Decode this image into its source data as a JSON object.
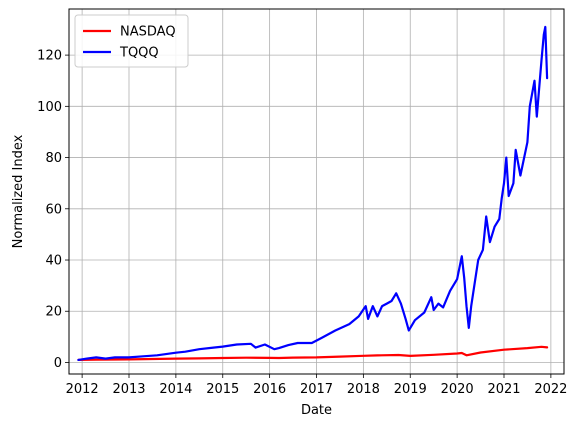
{
  "chart_data": {
    "type": "line",
    "xlabel": "Date",
    "ylabel": "Normalized Index",
    "xlim": [
      2011.72,
      2022.28
    ],
    "ylim": [
      -4.5,
      138
    ],
    "grid": true,
    "legend_position": "top-left",
    "x_ticks": [
      2012,
      2013,
      2014,
      2015,
      2016,
      2017,
      2018,
      2019,
      2020,
      2021,
      2022
    ],
    "x_tick_labels": [
      "2012",
      "2013",
      "2014",
      "2015",
      "2016",
      "2017",
      "2018",
      "2019",
      "2020",
      "2021",
      "2022"
    ],
    "y_ticks": [
      0,
      20,
      40,
      60,
      80,
      100,
      120
    ],
    "y_tick_labels": [
      "0",
      "20",
      "40",
      "60",
      "80",
      "100",
      "120"
    ],
    "series": [
      {
        "name": "NASDAQ",
        "color": "#ff0000",
        "x": [
          2011.92,
          2012.3,
          2012.7,
          2013.0,
          2013.5,
          2014.0,
          2014.5,
          2015.0,
          2015.5,
          2016.0,
          2016.2,
          2016.5,
          2017.0,
          2017.5,
          2018.0,
          2018.3,
          2018.75,
          2019.0,
          2019.5,
          2020.0,
          2020.1,
          2020.2,
          2020.5,
          2021.0,
          2021.5,
          2021.8,
          2021.92
        ],
        "y": [
          1.0,
          1.1,
          1.15,
          1.2,
          1.35,
          1.5,
          1.6,
          1.75,
          1.85,
          1.8,
          1.75,
          1.9,
          2.0,
          2.3,
          2.6,
          2.75,
          2.9,
          2.55,
          3.0,
          3.5,
          3.7,
          2.8,
          3.9,
          5.0,
          5.6,
          6.1,
          5.9
        ]
      },
      {
        "name": "TQQQ",
        "color": "#0000ff",
        "x": [
          2011.92,
          2012.1,
          2012.3,
          2012.5,
          2012.7,
          2013.0,
          2013.3,
          2013.6,
          2014.0,
          2014.2,
          2014.5,
          2014.8,
          2015.0,
          2015.3,
          2015.6,
          2015.7,
          2015.9,
          2016.1,
          2016.2,
          2016.4,
          2016.6,
          2016.9,
          2017.1,
          2017.4,
          2017.7,
          2017.9,
          2018.05,
          2018.1,
          2018.2,
          2018.3,
          2018.4,
          2018.5,
          2018.6,
          2018.7,
          2018.8,
          2018.9,
          2018.97,
          2019.1,
          2019.3,
          2019.45,
          2019.5,
          2019.6,
          2019.7,
          2019.85,
          2020.0,
          2020.1,
          2020.15,
          2020.2,
          2020.25,
          2020.3,
          2020.45,
          2020.55,
          2020.62,
          2020.7,
          2020.8,
          2020.9,
          2020.95,
          2021.0,
          2021.05,
          2021.1,
          2021.2,
          2021.25,
          2021.35,
          2021.5,
          2021.55,
          2021.65,
          2021.7,
          2021.8,
          2021.85,
          2021.88,
          2021.92
        ],
        "y": [
          1.0,
          1.5,
          2.0,
          1.5,
          2.0,
          2.0,
          2.4,
          2.8,
          3.8,
          4.2,
          5.2,
          5.8,
          6.2,
          7.0,
          7.3,
          5.8,
          7.0,
          5.2,
          5.6,
          6.8,
          7.6,
          7.6,
          9.5,
          12.5,
          15.0,
          18.0,
          22.0,
          17.0,
          22.0,
          18.0,
          22.0,
          23.0,
          24.0,
          27.0,
          23.0,
          17.0,
          12.5,
          16.5,
          19.5,
          25.5,
          20.5,
          23.0,
          21.5,
          28.0,
          32.5,
          41.5,
          33.0,
          22.0,
          13.5,
          22.0,
          40.0,
          44.0,
          57.0,
          47.0,
          53.0,
          56.0,
          64.0,
          70.0,
          80.0,
          65.0,
          70.0,
          83.0,
          73.0,
          86.0,
          100.0,
          110.0,
          96.0,
          118.0,
          128.0,
          131.0,
          111.0
        ]
      }
    ]
  }
}
